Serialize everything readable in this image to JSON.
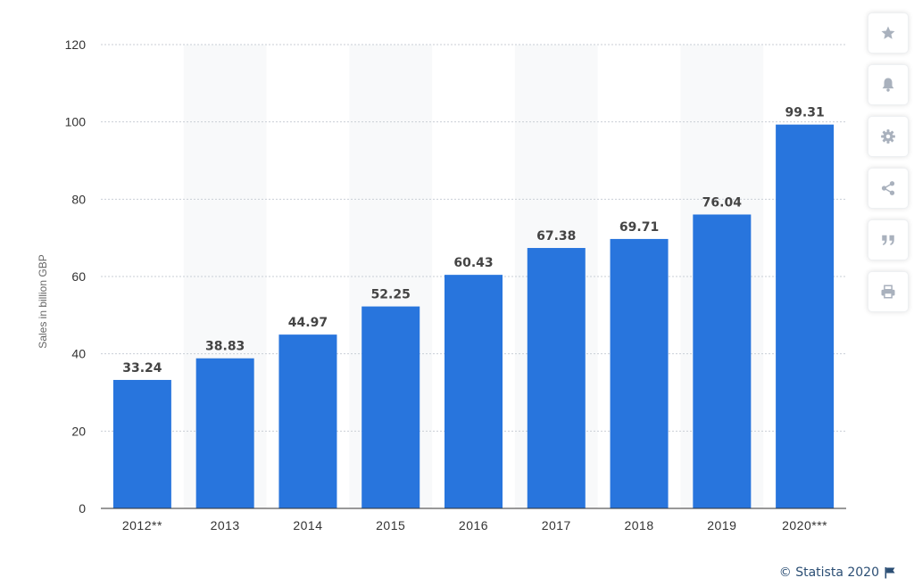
{
  "chart_data": {
    "type": "bar",
    "categories": [
      "2012**",
      "2013",
      "2014",
      "2015",
      "2016",
      "2017",
      "2018",
      "2019",
      "2020***"
    ],
    "values": [
      33.24,
      38.83,
      44.97,
      52.25,
      60.43,
      67.38,
      69.71,
      76.04,
      99.31
    ],
    "value_labels": [
      "33.24",
      "38.83",
      "44.97",
      "52.25",
      "60.43",
      "67.38",
      "69.71",
      "76.04",
      "99.31"
    ],
    "title": "",
    "xlabel": "",
    "ylabel": "Sales in billion GBP",
    "ylim": [
      0,
      120
    ],
    "yticks": [
      0,
      20,
      40,
      60,
      80,
      100,
      120
    ],
    "grid": true,
    "bar_color": "#2875dd",
    "alt_band_color": "#f8f9fa"
  },
  "toolbar": {
    "buttons": [
      {
        "name": "favorite-button",
        "icon": "star-icon"
      },
      {
        "name": "notification-button",
        "icon": "bell-icon"
      },
      {
        "name": "settings-button",
        "icon": "gear-icon"
      },
      {
        "name": "share-button",
        "icon": "share-icon"
      },
      {
        "name": "cite-button",
        "icon": "quote-icon"
      },
      {
        "name": "print-button",
        "icon": "print-icon"
      }
    ],
    "icon_color": "#a9b1bd"
  },
  "credit": {
    "text": "© Statista 2020"
  }
}
